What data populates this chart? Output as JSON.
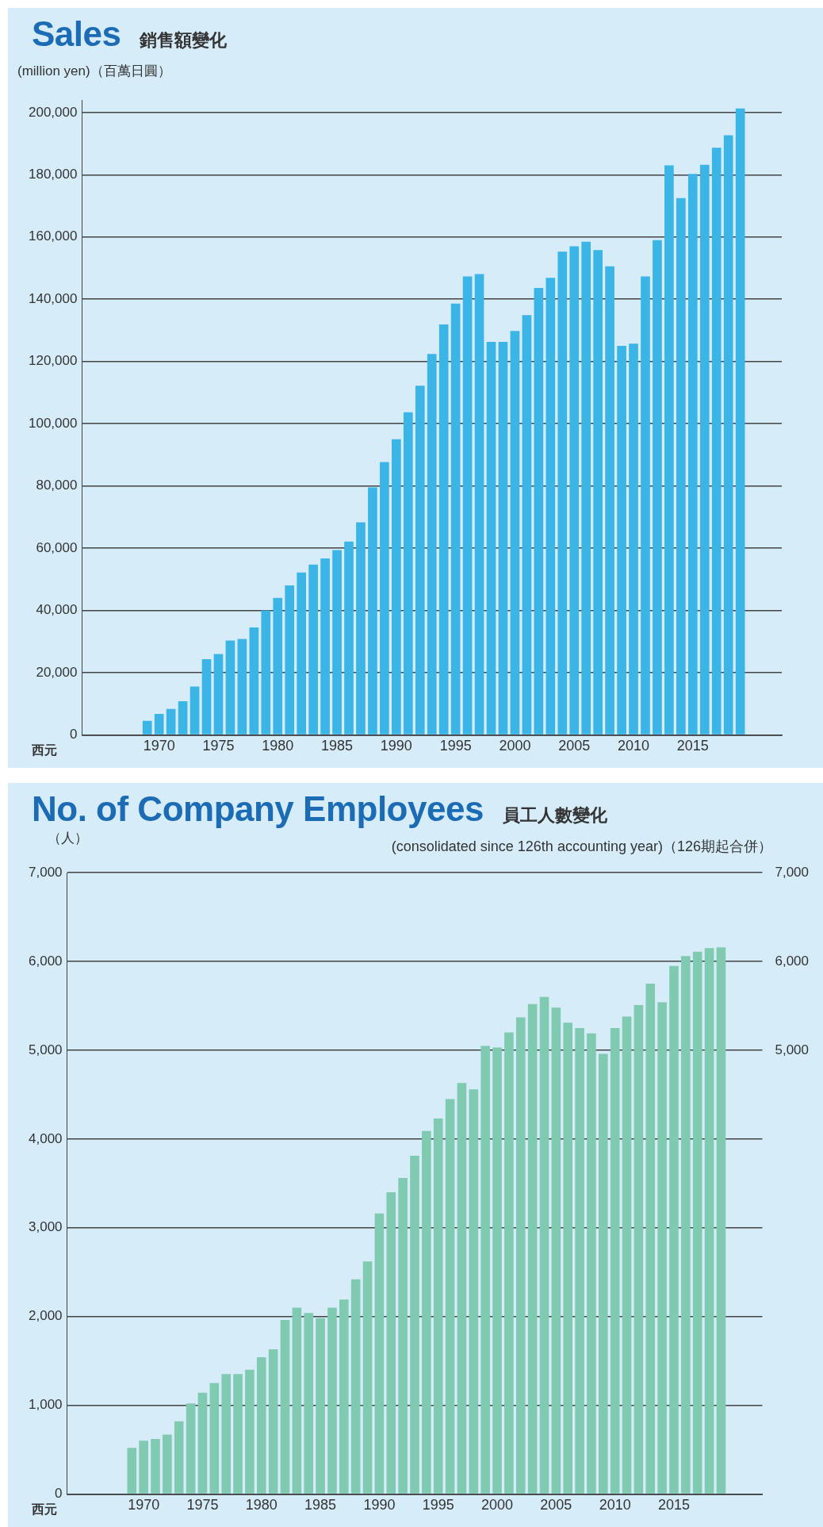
{
  "chart_data": [
    {
      "type": "bar",
      "title": "Sales",
      "subtitle": "銷售額變化",
      "ylabel": "(million yen)（百萬日圓）",
      "xlabel": "西元",
      "categories": [
        null,
        null,
        null,
        null,
        null,
        null,
        "1970",
        null,
        null,
        null,
        null,
        "1975",
        null,
        null,
        null,
        null,
        "1980",
        null,
        null,
        null,
        null,
        "1985",
        null,
        null,
        null,
        null,
        "1990",
        null,
        null,
        null,
        null,
        "1995",
        null,
        null,
        null,
        null,
        "2000",
        null,
        null,
        null,
        null,
        "2005",
        null,
        null,
        null,
        null,
        "2010",
        null,
        null,
        null,
        null,
        "2015",
        null,
        null,
        null,
        null,
        null,
        null,
        null
      ],
      "values": [
        null,
        null,
        null,
        null,
        null,
        4500,
        6700,
        8300,
        10800,
        15500,
        24300,
        26000,
        30300,
        30800,
        34500,
        40000,
        44000,
        48000,
        52200,
        54700,
        56700,
        59400,
        62100,
        68300,
        79500,
        87700,
        95000,
        103700,
        112200,
        122400,
        131900,
        138600,
        147300,
        148100,
        126300,
        126300,
        129800,
        134900,
        143600,
        146900,
        155300,
        157000,
        158500,
        155800,
        150600,
        125000,
        125700,
        147300,
        159000,
        183000,
        172500,
        180300,
        183200,
        188700,
        192700,
        201300,
        null,
        null,
        null
      ],
      "color": "#3bb4e6",
      "ylim": [
        0,
        204000
      ],
      "yticks": [
        0,
        {
          "value": 20000,
          "label": "20,000"
        },
        {
          "value": 40000,
          "label": "40,000"
        },
        {
          "value": 60000,
          "label": "60,000"
        },
        {
          "value": 80000,
          "label": "80,000"
        },
        {
          "value": 100000,
          "label": "100,000"
        },
        {
          "value": 120000,
          "label": "120,000"
        },
        {
          "value": 140000,
          "label": "140,000"
        },
        {
          "value": 160000,
          "label": "160,000"
        },
        {
          "value": 180000,
          "label": "180,000"
        },
        {
          "value": 200000,
          "label": "200,000"
        }
      ],
      "grid": "y",
      "legend": false
    },
    {
      "type": "bar",
      "title": "No. of Company Employees",
      "subtitle": "員工人數變化",
      "ylabel": "（人）",
      "xlabel": "西元",
      "annotations": [
        "(consolidated since 126th accounting year)（126期起合併）"
      ],
      "categories": [
        null,
        null,
        null,
        null,
        null,
        null,
        "1970",
        null,
        null,
        null,
        null,
        "1975",
        null,
        null,
        null,
        null,
        "1980",
        null,
        null,
        null,
        null,
        "1985",
        null,
        null,
        null,
        null,
        "1990",
        null,
        null,
        null,
        null,
        "1995",
        null,
        null,
        null,
        null,
        "2000",
        null,
        null,
        null,
        null,
        "2005",
        null,
        null,
        null,
        null,
        "2010",
        null,
        null,
        null,
        null,
        "2015",
        null,
        null,
        null,
        null,
        null,
        null,
        null
      ],
      "values": [
        null,
        null,
        null,
        null,
        null,
        520,
        600,
        620,
        670,
        820,
        1020,
        1140,
        1250,
        1350,
        1350,
        1400,
        1540,
        1630,
        1960,
        2100,
        2040,
        1980,
        2100,
        2190,
        2420,
        2620,
        3160,
        3400,
        3560,
        3810,
        4090,
        4230,
        4450,
        4630,
        4560,
        5050,
        5030,
        5200,
        5370,
        5520,
        5600,
        5480,
        5310,
        5250,
        5190,
        4960,
        5250,
        5380,
        5510,
        5750,
        5540,
        5950,
        6060,
        6110,
        6150,
        6160,
        null,
        null,
        null
      ],
      "color": "#7fcab0",
      "ylim": [
        0,
        7000
      ],
      "yticks": [
        0,
        {
          "value": 1000,
          "label": "1,000"
        },
        {
          "value": 2000,
          "label": "2,000"
        },
        {
          "value": 3000,
          "label": "3,000"
        },
        {
          "value": 4000,
          "label": "4,000"
        },
        {
          "value": 5000,
          "label": "5,000"
        },
        {
          "value": 6000,
          "label": "6,000"
        },
        {
          "value": 7000,
          "label": "7,000"
        }
      ],
      "y2lim": [
        0,
        7000
      ],
      "y2ticks": [
        {
          "value": 5000,
          "label": "5,000"
        },
        {
          "value": 6000,
          "label": "6,000"
        },
        {
          "value": 7000,
          "label": "7,000"
        }
      ],
      "grid": "y",
      "legend": false
    }
  ]
}
